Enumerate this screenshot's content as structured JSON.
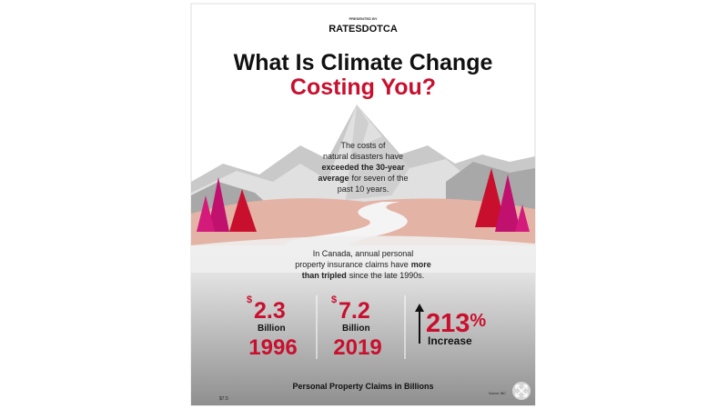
{
  "header": {
    "presented_by": "PRESENTED BY",
    "brand": "RATESDOTCA"
  },
  "title": {
    "line1": "What Is Climate Change",
    "line2": "Costing You?"
  },
  "intro": {
    "line1": "The costs of",
    "line2": "natural disasters have",
    "line3_bold": "exceeded the 30-year",
    "line4_bold": "average",
    "line4": "for seven of the",
    "line5": "past 10 years."
  },
  "claims_text": {
    "line1": "In Canada, annual personal",
    "line2": "property insurance claims have",
    "line2_bold": "more",
    "line3_bold": "than tripled",
    "line3": "since the late 1990s."
  },
  "stats": [
    {
      "currency": "$",
      "amount": "2.3",
      "unit": "Billion",
      "year": "1996"
    },
    {
      "currency": "$",
      "amount": "7.2",
      "unit": "Billion",
      "year": "2019"
    },
    {
      "value": "213",
      "suffix": "%",
      "label": "Increase"
    }
  ],
  "footer": {
    "caption": "Personal Property Claims in Billions",
    "axis_label": "$7.5",
    "source": "Source: IBC"
  }
}
